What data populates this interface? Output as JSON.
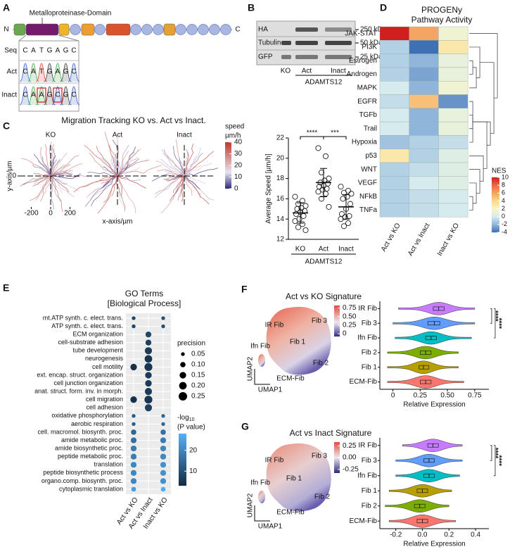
{
  "panel_labels": [
    "A",
    "B",
    "C",
    "D",
    "E",
    "F",
    "G"
  ],
  "domain_diagram": {
    "domain_label": "Metalloproteinase-Domain",
    "n_term": "N",
    "c_term": "C",
    "rows": [
      {
        "label": "Seq",
        "bases": [
          "C",
          "A",
          "T",
          "G",
          "A",
          "G",
          "C"
        ]
      },
      {
        "label": "Act",
        "bases": [
          "C",
          "A",
          "T",
          "G",
          "A",
          "G",
          "C"
        ]
      },
      {
        "label": "Inact",
        "bases": [
          "C",
          "A",
          "A",
          "G",
          "C",
          "G",
          "C"
        ]
      }
    ]
  },
  "western_blot": {
    "bands": [
      "HA",
      "Tubulin",
      "GFP"
    ],
    "markers": [
      "250 kDa",
      "50 kDa",
      "25 kDa"
    ],
    "lanes": [
      "KO",
      "Act",
      "Inact"
    ],
    "group": "ADAMTS12"
  },
  "chart_data": [
    {
      "type": "tracks",
      "title": "Migration Tracking KO vs. Act vs Inact.",
      "panels": [
        "KO",
        "Act",
        "Inact"
      ],
      "xlabel": "x-axis/µm",
      "ylabel": "y-axis/µm",
      "xlim": [
        -320,
        320
      ],
      "ylim": [
        -320,
        320
      ],
      "xticks": [
        -200,
        0,
        200
      ],
      "yticks": [
        0
      ],
      "colorbar": {
        "title": "speed",
        "unit": "µm/h",
        "lim": [
          0,
          40
        ],
        "ticks": [
          0,
          10,
          20,
          30,
          40
        ]
      }
    },
    {
      "type": "strip",
      "ylabel": "Average Speed [µm/h]",
      "ylim": [
        12,
        22
      ],
      "yticks": [
        12,
        14,
        16,
        18,
        20,
        22
      ],
      "categories": [
        "KO",
        "Act",
        "Inact"
      ],
      "group_label": "ADAMTS12",
      "values": [
        [
          16.2,
          15.8,
          15.5,
          15.3,
          15.1,
          15.0,
          14.8,
          14.7,
          14.5,
          14.3,
          14.0,
          13.8,
          13.5,
          13.2,
          12.9
        ],
        [
          21.0,
          20.2,
          18.6,
          18.0,
          17.8,
          17.6,
          17.5,
          17.3,
          17.2,
          17.0,
          16.9,
          16.7,
          16.5,
          16.0,
          15.2
        ],
        [
          17.2,
          16.8,
          16.6,
          16.5,
          16.2,
          16.0,
          15.5,
          15.0,
          14.5,
          14.3,
          14.2,
          14.0,
          13.6,
          13.3
        ]
      ],
      "mean": [
        14.6,
        17.6,
        15.2
      ],
      "sd": [
        1.0,
        1.4,
        1.2
      ],
      "significance": [
        "****",
        "***"
      ]
    },
    {
      "type": "heatmap",
      "title": [
        "PROGENy",
        "Pathway Activity"
      ],
      "rows": [
        "JAK-STAT",
        "PI3K",
        "Estrogen",
        "Androgen",
        "MAPK",
        "EGFR",
        "TGFb",
        "Trail",
        "Hypoxia",
        "p53",
        "WNT",
        "VEGF",
        "NFkB",
        "TNFa"
      ],
      "columns": [
        "Act vs KO",
        "Act vs Inact",
        "Inact vs KO"
      ],
      "values": [
        [
          10,
          6,
          1.5
        ],
        [
          -1,
          -4,
          3
        ],
        [
          -1,
          -2,
          1
        ],
        [
          -1,
          -2.5,
          1
        ],
        [
          0,
          -2,
          1.5
        ],
        [
          -0.5,
          5,
          -3
        ],
        [
          0,
          -2,
          1
        ],
        [
          0,
          -2,
          1
        ],
        [
          -1.5,
          -1,
          -0.5
        ],
        [
          3,
          -1,
          0.5
        ],
        [
          -1,
          -0.5,
          0.5
        ],
        [
          -1,
          0,
          0.5
        ],
        [
          -1,
          -0.5,
          0
        ],
        [
          -1,
          -0.5,
          0
        ]
      ],
      "colorbar": {
        "title": "NES",
        "lim": [
          -4,
          10
        ],
        "ticks": [
          -4,
          -2,
          0,
          2,
          4,
          6,
          8,
          10
        ]
      }
    },
    {
      "type": "dot",
      "title": [
        "GO Terms",
        "[Biological Process]"
      ],
      "categories": [
        "mt.ATP synth. c. elect. trans.",
        "ATP synth. c. elect. trans.",
        "ECM organization",
        "cell-substrate adhesion",
        "tube development",
        "neurogenesis",
        "cell motility",
        "ext. encap. struct. organization",
        "cell junction organization",
        "anat. struct. form. inv. in morph.",
        "cell migration",
        "cell adhesion",
        "oxidative phosphorylation",
        "aerobic respiration",
        "cell. macromol. biosynth. proc.",
        "amide metabolic proc.",
        "amide biosynthetic proc.",
        "peptide metabolic proc.",
        "translation",
        "peptide biosynthetic process",
        "organo.comp. biosynth. proc.",
        "cytoplasmic translation"
      ],
      "series": [
        {
          "name": "Act vs KO",
          "precision": [
            0.05,
            0.05,
            null,
            null,
            null,
            null,
            0.15,
            null,
            null,
            null,
            0.15,
            null,
            0.05,
            0.05,
            0.1,
            0.12,
            0.12,
            0.12,
            0.12,
            0.12,
            0.12,
            0.08
          ],
          "log_p": [
            8,
            8,
            null,
            null,
            null,
            null,
            4,
            null,
            null,
            null,
            4,
            null,
            12,
            12,
            14,
            16,
            18,
            18,
            20,
            20,
            20,
            24
          ]
        },
        {
          "name": "Act vs Inact",
          "precision": [
            null,
            null,
            0.12,
            0.12,
            0.18,
            0.2,
            0.22,
            0.15,
            0.15,
            0.18,
            0.22,
            0.18,
            null,
            null,
            null,
            null,
            null,
            null,
            null,
            null,
            null,
            null
          ],
          "log_p": [
            null,
            null,
            8,
            7,
            6,
            5,
            5,
            6,
            6,
            6,
            5,
            7,
            null,
            null,
            null,
            null,
            null,
            null,
            null,
            null,
            null,
            null
          ]
        },
        {
          "name": "Inact vs KO",
          "precision": [
            0.05,
            0.05,
            null,
            null,
            null,
            null,
            null,
            null,
            null,
            null,
            null,
            null,
            0.05,
            0.05,
            0.1,
            0.12,
            0.12,
            0.12,
            0.12,
            0.12,
            0.12,
            0.08
          ],
          "log_p": [
            10,
            10,
            null,
            null,
            null,
            null,
            null,
            null,
            null,
            null,
            null,
            null,
            14,
            14,
            16,
            18,
            20,
            20,
            22,
            22,
            22,
            27
          ]
        }
      ],
      "size_legend": {
        "title": "precision",
        "ticks": [
          0.05,
          {
            "value": 0.1,
            "label": "0.10"
          },
          0.15,
          {
            "value": 0.2,
            "label": "0.20"
          },
          0.25
        ]
      },
      "color_legend": {
        "title": [
          "-log",
          "10",
          "(P value)"
        ],
        "lim": [
          3,
          28
        ],
        "ticks": [
          10,
          20
        ]
      }
    },
    {
      "type": "umap",
      "title": "Act vs KO Signature",
      "xlabel": "UMAP1",
      "ylabel": "UMAP2",
      "clusters": [
        "IR Fib",
        "Fib 3",
        "Ifn Fib",
        "Fib 1",
        "Fib 2",
        "ECM-Fib"
      ],
      "colorbar": {
        "lim": [
          -0.08,
          0.82
        ],
        "ticks": [
          0,
          0.25,
          {
            "value": 0.5,
            "label": "0.50"
          },
          0.75
        ]
      }
    },
    {
      "type": "violin",
      "categories": [
        "IR Fib",
        "Fib 3",
        "Ifn Fib",
        "Fib 2",
        "Fib 1",
        "ECM-Fib"
      ],
      "colors": [
        "#c77cff",
        "#619cff",
        "#00bfc4",
        "#7cae00",
        "#b79f00",
        "#f8766d"
      ],
      "median": [
        0.42,
        0.38,
        0.35,
        0.3,
        0.28,
        0.3
      ],
      "q1": [
        0.37,
        0.32,
        0.3,
        0.25,
        0.24,
        0.25
      ],
      "q3": [
        0.47,
        0.43,
        0.4,
        0.35,
        0.33,
        0.35
      ],
      "min": [
        0.05,
        0.0,
        0.02,
        -0.05,
        -0.05,
        -0.05
      ],
      "max": [
        0.75,
        0.75,
        0.72,
        0.6,
        0.6,
        0.65
      ],
      "xlim": [
        -0.12,
        0.88
      ],
      "xticks": [
        0,
        0.25,
        {
          "value": 0.5,
          "label": "0.50"
        },
        0.75
      ],
      "xlabel": "Relative Expression",
      "significance": [
        "****",
        "****"
      ]
    },
    {
      "type": "umap",
      "title": "Act vs Inact Signature",
      "xlabel": "UMAP1",
      "ylabel": "UMAP2",
      "clusters": [
        "IR Fib",
        "Fib 3",
        "Ifn Fib",
        "Fib 1",
        "Fib 2",
        "ECM-Fib"
      ],
      "colorbar": {
        "lim": [
          -0.33,
          0.33
        ],
        "ticks": [
          -0.25,
          {
            "value": 0,
            "label": "0.00"
          },
          0.25
        ]
      }
    },
    {
      "type": "violin",
      "categories": [
        "IR Fib",
        "Fib 3",
        "Ifn Fib",
        "Fib 1",
        "Fib 2",
        "ECM-Fib"
      ],
      "colors": [
        "#c77cff",
        "#619cff",
        "#00bfc4",
        "#b79f00",
        "#7cae00",
        "#f8766d"
      ],
      "median": [
        0.08,
        0.05,
        0.05,
        0.0,
        -0.02,
        0.0
      ],
      "q1": [
        0.04,
        0.01,
        0.01,
        -0.04,
        -0.06,
        -0.04
      ],
      "q3": [
        0.12,
        0.09,
        0.09,
        0.04,
        0.02,
        0.04
      ],
      "min": [
        -0.15,
        -0.2,
        -0.2,
        -0.25,
        -0.28,
        -0.25
      ],
      "max": [
        0.3,
        0.3,
        0.28,
        0.22,
        0.2,
        0.25
      ],
      "xlim": [
        -0.32,
        0.5
      ],
      "xticks": [
        -0.2,
        {
          "value": 0,
          "label": "0.0"
        },
        0.2,
        0.4
      ],
      "xlabel": "Relative Expression",
      "significance": [
        "****",
        "****"
      ]
    }
  ]
}
